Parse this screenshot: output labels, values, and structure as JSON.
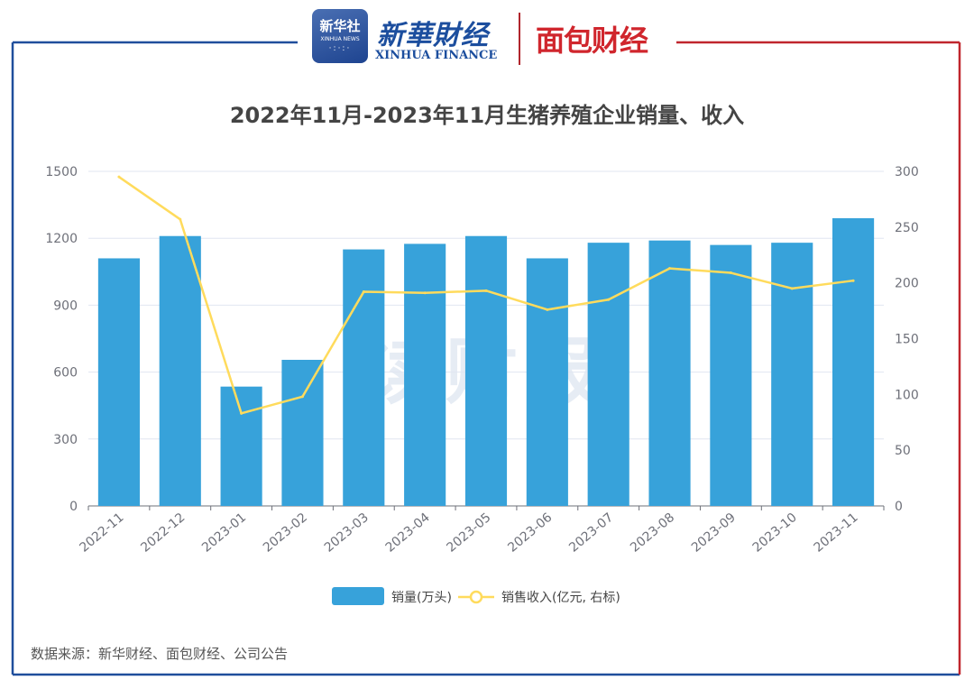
{
  "branding": {
    "xinhua_badge_cn": "新华社",
    "xinhua_badge_en": "XINHUA NEWS",
    "xinhua_finance_cn": "新華財经",
    "xinhua_finance_en": "XINHUA FINANCE",
    "mianbao_cn": "面包财经",
    "watermark": "读财报",
    "frame_left_color": "#1f4e9c",
    "frame_right_color": "#c0262d"
  },
  "source_note": "数据来源：新华财经、面包财经、公司公告",
  "chart_data": {
    "type": "bar",
    "title": "2022年11月-2023年11月生猪养殖企业销量、收入",
    "categories": [
      "2022-11",
      "2022-12",
      "2023-01",
      "2023-02",
      "2023-03",
      "2023-04",
      "2023-05",
      "2023-06",
      "2023-07",
      "2023-08",
      "2023-09",
      "2023-10",
      "2023-11"
    ],
    "series": [
      {
        "name": "销量(万头)",
        "kind": "bar",
        "axis": "left",
        "color": "#37a2da",
        "values": [
          1110,
          1210,
          535,
          655,
          1150,
          1175,
          1210,
          1110,
          1180,
          1190,
          1170,
          1180,
          1290
        ]
      },
      {
        "name": "销售收入(亿元, 右标)",
        "kind": "line",
        "axis": "right",
        "color": "#ffdb5c",
        "values": [
          295,
          257,
          83,
          98,
          192,
          191,
          193,
          176,
          185,
          213,
          209,
          195,
          202
        ]
      }
    ],
    "y_left": {
      "min": 0,
      "max": 1500,
      "ticks": [
        0,
        300,
        600,
        900,
        1200,
        1500
      ]
    },
    "y_right": {
      "min": 0,
      "max": 300,
      "ticks": [
        0,
        50,
        100,
        150,
        200,
        250,
        300
      ]
    },
    "grid": true,
    "legend_position": "bottom"
  }
}
